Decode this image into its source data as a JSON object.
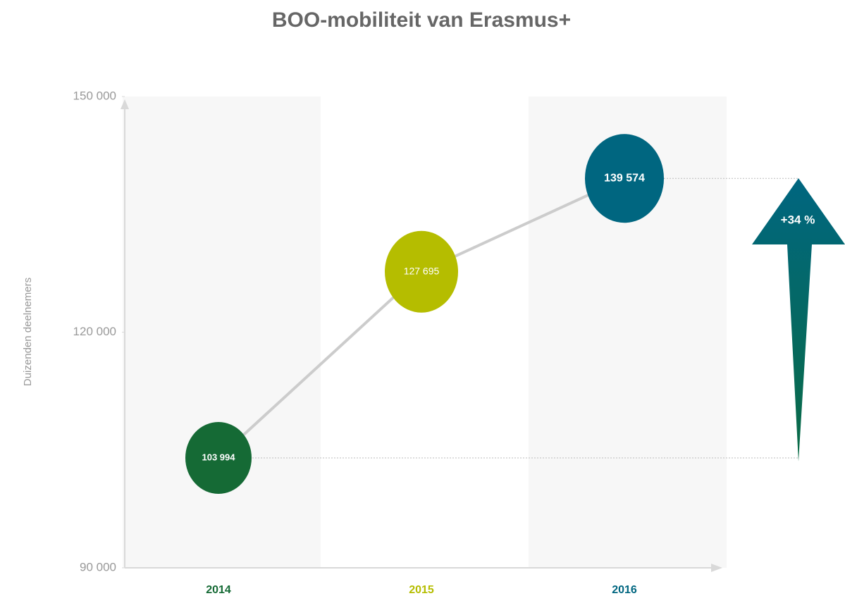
{
  "chart_data": {
    "type": "line",
    "title": "BOO-mobiliteit van Erasmus+",
    "y_label": "Duizenden deelnemers",
    "categories": [
      "2014",
      "2015",
      "2016"
    ],
    "values": [
      103994,
      127695,
      139574
    ],
    "value_labels": [
      "103 994",
      "127 695",
      "139 574"
    ],
    "colors": [
      "#156a35",
      "#b5bd00",
      "#006680"
    ],
    "line_color": "#cccccc",
    "ylim": [
      90000,
      150000
    ],
    "yticks": [
      {
        "value": 90000,
        "label": "90 000"
      },
      {
        "value": 120000,
        "label": "120 000"
      },
      {
        "value": 150000,
        "label": "150 000"
      }
    ],
    "annotation": "+34 %"
  }
}
